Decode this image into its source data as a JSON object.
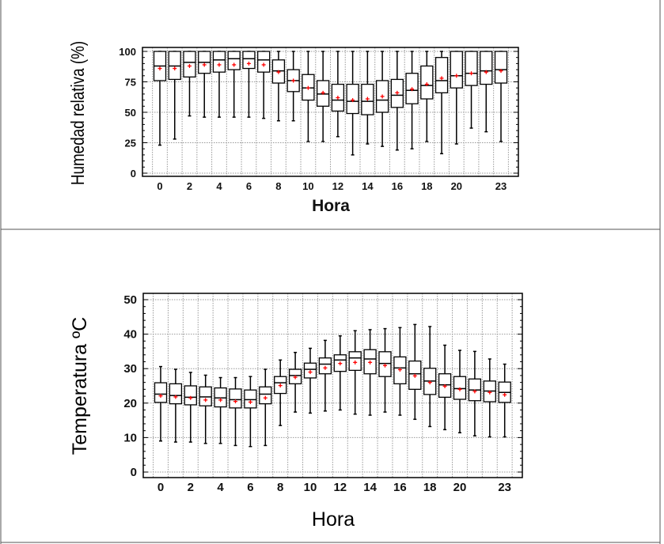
{
  "chart_data": [
    {
      "type": "boxplot",
      "xlabel": "Hora",
      "ylabel": "Humedad relativa (%)",
      "ylim": [
        0,
        100
      ],
      "yticks": [
        0,
        25,
        50,
        75,
        100
      ],
      "xtick_labels": [
        "0",
        "2",
        "4",
        "6",
        "8",
        "10",
        "12",
        "14",
        "16",
        "18",
        "20",
        "23"
      ],
      "xtick_values": [
        0,
        2,
        4,
        6,
        8,
        10,
        12,
        14,
        16,
        18,
        20,
        23
      ],
      "grid": true,
      "mean_marker_color": "#ff0000",
      "categories": [
        0,
        1,
        2,
        3,
        4,
        5,
        6,
        7,
        8,
        9,
        10,
        11,
        12,
        13,
        14,
        15,
        16,
        17,
        18,
        19,
        20,
        21,
        22,
        23
      ],
      "whisker_low": [
        23,
        28,
        47,
        46,
        46,
        46,
        46,
        45,
        43,
        43,
        26,
        26,
        30,
        15,
        24,
        22,
        19,
        20,
        26,
        16,
        24,
        37,
        34,
        26
      ],
      "q1": [
        76,
        77,
        79,
        82,
        83,
        85,
        86,
        83,
        74,
        67,
        60,
        55,
        51,
        49,
        48,
        50,
        54,
        57,
        61,
        66,
        70,
        72,
        73,
        74
      ],
      "median": [
        88,
        88,
        91,
        91,
        93,
        94,
        94,
        93,
        84,
        76,
        70,
        65,
        60,
        59,
        59,
        60,
        64,
        68,
        72,
        76,
        80,
        82,
        84,
        85
      ],
      "q3": [
        100,
        100,
        100,
        100,
        100,
        100,
        100,
        100,
        93,
        85,
        81,
        76,
        73,
        73,
        73,
        76,
        77,
        82,
        88,
        95,
        100,
        100,
        100,
        100
      ],
      "whisker_high": [
        100,
        100,
        100,
        100,
        100,
        100,
        100,
        100,
        100,
        100,
        100,
        100,
        100,
        100,
        100,
        100,
        100,
        100,
        100,
        100,
        100,
        100,
        100,
        100
      ],
      "mean": [
        86,
        86,
        88,
        89,
        89,
        89,
        90,
        89,
        83,
        76,
        70,
        66,
        62,
        60,
        61,
        63,
        66,
        69,
        73,
        78,
        80,
        82,
        83,
        84
      ]
    },
    {
      "type": "boxplot",
      "xlabel": "Hora",
      "ylabel": "Temperatura ºC",
      "ylim": [
        0,
        50
      ],
      "yticks": [
        0,
        10,
        20,
        30,
        40,
        50
      ],
      "xtick_labels": [
        "0",
        "2",
        "4",
        "6",
        "8",
        "10",
        "12",
        "14",
        "16",
        "18",
        "20",
        "23"
      ],
      "xtick_values": [
        0,
        2,
        4,
        6,
        8,
        10,
        12,
        14,
        16,
        18,
        20,
        23
      ],
      "grid": true,
      "mean_marker_color": "#ff0000",
      "categories": [
        0,
        1,
        2,
        3,
        4,
        5,
        6,
        7,
        8,
        9,
        10,
        11,
        12,
        13,
        14,
        15,
        16,
        17,
        18,
        19,
        20,
        21,
        22,
        23
      ],
      "whisker_low": [
        9.0,
        8.7,
        8.7,
        8.3,
        8.3,
        7.7,
        7.4,
        7.7,
        13.5,
        17.4,
        17.1,
        17.7,
        18.0,
        16.8,
        16.5,
        17.4,
        16.5,
        15.3,
        13.2,
        12.3,
        11.4,
        10.5,
        10.2,
        10.2
      ],
      "q1": [
        20.2,
        19.8,
        19.5,
        19.2,
        18.9,
        18.6,
        18.6,
        19.8,
        22.8,
        25.6,
        27.3,
        28.5,
        29.2,
        29.5,
        28.5,
        27.7,
        25.6,
        24.0,
        22.5,
        21.7,
        21.1,
        20.7,
        20.4,
        20.2
      ],
      "median": [
        22.6,
        22.2,
        21.7,
        21.8,
        21.5,
        21.0,
        21.0,
        22.6,
        25.9,
        28.0,
        29.8,
        31.3,
        32.5,
        33.1,
        32.8,
        31.5,
        30.2,
        28.5,
        26.4,
        25.3,
        24.2,
        23.8,
        23.5,
        23.1
      ],
      "q3": [
        25.9,
        25.6,
        25.0,
        24.7,
        24.4,
        24.1,
        23.8,
        24.7,
        27.7,
        29.8,
        31.6,
        33.1,
        34.0,
        34.9,
        35.5,
        34.9,
        33.4,
        32.2,
        30.1,
        28.5,
        27.7,
        27.0,
        26.4,
        26.1
      ],
      "whisker_high": [
        30.6,
        29.8,
        28.9,
        28.1,
        27.4,
        27.4,
        27.7,
        29.8,
        32.5,
        34.7,
        35.9,
        38.2,
        39.5,
        41.0,
        41.3,
        41.6,
        41.9,
        42.8,
        42.2,
        36.8,
        35.3,
        35.0,
        32.8,
        31.3
      ],
      "mean": [
        22.1,
        21.8,
        21.5,
        20.9,
        20.9,
        20.5,
        20.3,
        21.5,
        25.1,
        27.5,
        29.0,
        30.2,
        31.5,
        31.8,
        31.8,
        30.9,
        29.7,
        27.9,
        26.0,
        24.9,
        24.0,
        23.4,
        23.1,
        22.4
      ]
    }
  ]
}
